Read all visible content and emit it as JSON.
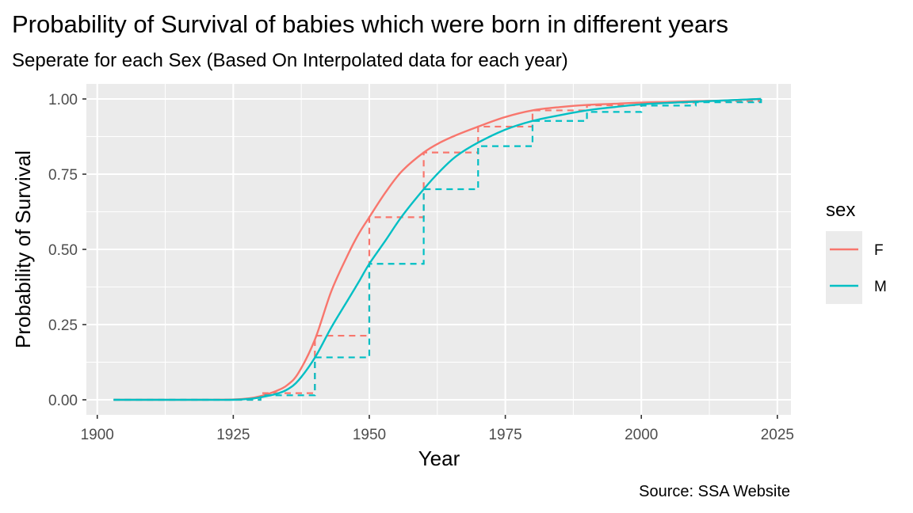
{
  "chart_data": {
    "type": "line",
    "title": "Probability of Survival of babies which were born in different years",
    "subtitle": "Seperate for each Sex (Based On Interpolated data for each year)",
    "xlabel": "Year",
    "ylabel": "Probability of Survival",
    "caption": "Source: SSA Website",
    "xlim": [
      1898,
      2027.5
    ],
    "ylim": [
      -0.05,
      1.05
    ],
    "x_ticks": [
      1900,
      1925,
      1950,
      1975,
      2000,
      2025
    ],
    "x_tick_labels": [
      "1900",
      "1925",
      "1950",
      "1975",
      "2000",
      "2025"
    ],
    "y_ticks": [
      0,
      0.25,
      0.5,
      0.75,
      1.0
    ],
    "y_tick_labels": [
      "0.00",
      "0.25",
      "0.50",
      "0.75",
      "1.00"
    ],
    "grid": true,
    "legend": {
      "title": "sex",
      "placement": "right"
    },
    "series": [
      {
        "name": "F",
        "color": "#F8766D",
        "smooth": [
          [
            1903,
            0.0
          ],
          [
            1910,
            0.0
          ],
          [
            1920,
            0.0
          ],
          [
            1925,
            0.001
          ],
          [
            1928,
            0.005
          ],
          [
            1930,
            0.012
          ],
          [
            1933,
            0.03
          ],
          [
            1935,
            0.05
          ],
          [
            1937,
            0.09
          ],
          [
            1940,
            0.2
          ],
          [
            1943,
            0.36
          ],
          [
            1946,
            0.48
          ],
          [
            1948,
            0.55
          ],
          [
            1950,
            0.607
          ],
          [
            1953,
            0.69
          ],
          [
            1956,
            0.76
          ],
          [
            1960,
            0.822
          ],
          [
            1963,
            0.855
          ],
          [
            1966,
            0.88
          ],
          [
            1970,
            0.908
          ],
          [
            1975,
            0.94
          ],
          [
            1980,
            0.962
          ],
          [
            1985,
            0.973
          ],
          [
            1990,
            0.98
          ],
          [
            1995,
            0.984
          ],
          [
            2000,
            0.988
          ],
          [
            2005,
            0.99
          ],
          [
            2010,
            0.993
          ],
          [
            2015,
            0.995
          ],
          [
            2022,
            1.0
          ]
        ],
        "decade_steps": [
          [
            1903,
            0.0
          ],
          [
            1910,
            0.0
          ],
          [
            1920,
            0.0
          ],
          [
            1930,
            0.022
          ],
          [
            1940,
            0.213
          ],
          [
            1950,
            0.607
          ],
          [
            1960,
            0.822
          ],
          [
            1970,
            0.908
          ],
          [
            1980,
            0.962
          ],
          [
            1990,
            0.979
          ],
          [
            2000,
            0.988
          ],
          [
            2010,
            0.993
          ],
          [
            2022,
            1.0
          ]
        ]
      },
      {
        "name": "M",
        "color": "#00BFC4",
        "smooth": [
          [
            1903,
            0.0
          ],
          [
            1910,
            0.0
          ],
          [
            1920,
            0.0
          ],
          [
            1925,
            0.0
          ],
          [
            1928,
            0.003
          ],
          [
            1930,
            0.008
          ],
          [
            1933,
            0.02
          ],
          [
            1935,
            0.035
          ],
          [
            1937,
            0.065
          ],
          [
            1940,
            0.14
          ],
          [
            1943,
            0.24
          ],
          [
            1946,
            0.33
          ],
          [
            1948,
            0.39
          ],
          [
            1950,
            0.452
          ],
          [
            1953,
            0.53
          ],
          [
            1956,
            0.61
          ],
          [
            1960,
            0.7
          ],
          [
            1963,
            0.76
          ],
          [
            1966,
            0.81
          ],
          [
            1970,
            0.855
          ],
          [
            1975,
            0.898
          ],
          [
            1980,
            0.927
          ],
          [
            1985,
            0.946
          ],
          [
            1990,
            0.962
          ],
          [
            1995,
            0.973
          ],
          [
            2000,
            0.982
          ],
          [
            2005,
            0.987
          ],
          [
            2010,
            0.991
          ],
          [
            2015,
            0.995
          ],
          [
            2022,
            1.0
          ]
        ],
        "decade_steps": [
          [
            1903,
            0.0
          ],
          [
            1910,
            0.0
          ],
          [
            1920,
            0.0
          ],
          [
            1930,
            0.015
          ],
          [
            1940,
            0.141
          ],
          [
            1950,
            0.452
          ],
          [
            1960,
            0.7
          ],
          [
            1970,
            0.843
          ],
          [
            1980,
            0.927
          ],
          [
            1990,
            0.957
          ],
          [
            2000,
            0.978
          ],
          [
            2010,
            0.989
          ],
          [
            2022,
            1.0
          ]
        ]
      }
    ]
  }
}
